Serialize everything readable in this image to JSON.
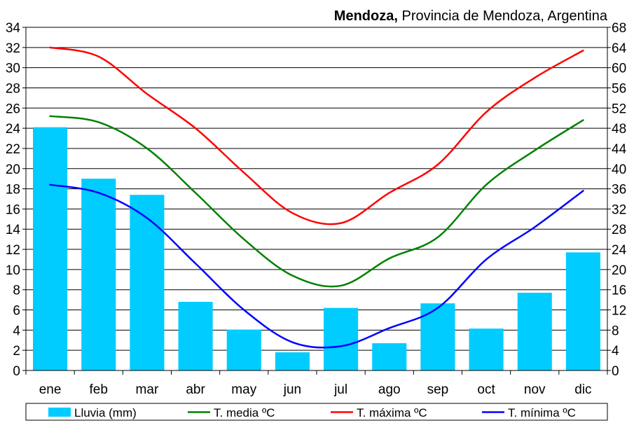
{
  "title": {
    "city": "Mendoza,",
    "rest": " Provincia de Mendoza, Argentina"
  },
  "chart_data": {
    "type": "bar+line",
    "title": "Mendoza, Provincia de Mendoza, Argentina",
    "categories": [
      "ene",
      "feb",
      "mar",
      "abr",
      "may",
      "jun",
      "jul",
      "ago",
      "sep",
      "oct",
      "nov",
      "dic"
    ],
    "left_axis": {
      "min": 0,
      "max": 34,
      "step": 2
    },
    "right_axis": {
      "min": 0,
      "max": 68,
      "step": 4
    },
    "grid": true,
    "legend_position": "bottom",
    "series": [
      {
        "name": "Lluvia (mm)",
        "kind": "bar",
        "axis": "right",
        "color": "#00ccff",
        "values": [
          48.2,
          38.0,
          34.8,
          13.6,
          8.1,
          3.6,
          12.4,
          5.4,
          13.3,
          8.3,
          15.4,
          23.4
        ]
      },
      {
        "name": "T. media ºC",
        "kind": "line",
        "axis": "left",
        "color": "#008000",
        "values": [
          25.2,
          24.6,
          22.0,
          17.6,
          13.0,
          9.4,
          8.4,
          11.1,
          13.2,
          18.4,
          21.8,
          24.8
        ]
      },
      {
        "name": "T. máxima ºC",
        "kind": "line",
        "axis": "left",
        "color": "#ff0000",
        "values": [
          32.0,
          31.1,
          27.4,
          24.0,
          19.6,
          15.6,
          14.6,
          17.6,
          20.4,
          25.6,
          29.0,
          31.7
        ]
      },
      {
        "name": "T. mínima ºC",
        "kind": "line",
        "axis": "left",
        "color": "#0000ff",
        "values": [
          18.4,
          17.6,
          15.1,
          10.6,
          6.0,
          2.8,
          2.4,
          4.2,
          6.2,
          11.0,
          14.2,
          17.8
        ]
      }
    ]
  }
}
